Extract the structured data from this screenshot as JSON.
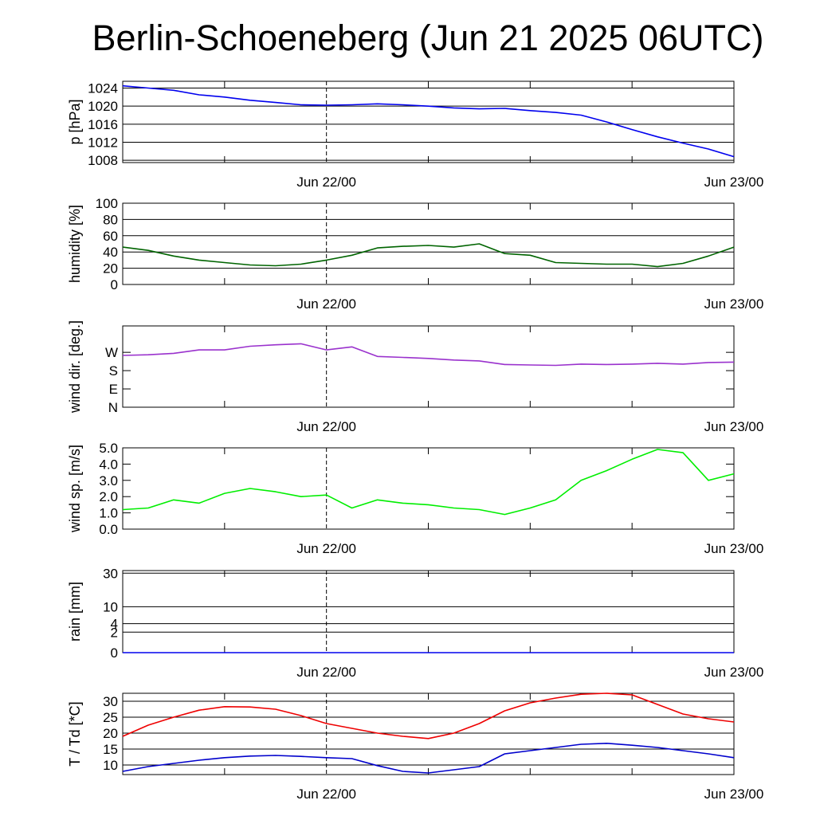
{
  "title": "Berlin-Schoeneberg (Jun 21 2025 06UTC)",
  "x_tick_labels": [
    "Jun 22/00",
    "Jun 23/00"
  ],
  "chart_data": [
    {
      "type": "line",
      "ylabel": "p [hPa]",
      "ylim": [
        1007.5,
        1025.5
      ],
      "yticks": [
        1008,
        1012,
        1016,
        1020,
        1024
      ],
      "ytick_labels": [
        "1008",
        "1012",
        "1016",
        "1020",
        "1024"
      ],
      "grid": true,
      "x_hours": [
        0,
        3,
        6,
        9,
        12,
        15,
        18,
        21,
        24,
        27,
        30,
        33,
        36,
        39,
        42,
        45,
        48,
        51,
        54,
        57,
        60,
        63,
        66,
        69,
        72
      ],
      "series": [
        {
          "color": "#0000ee",
          "values": [
            1024.5,
            1024.0,
            1023.5,
            1022.5,
            1022.0,
            1021.3,
            1020.8,
            1020.3,
            1020.2,
            1020.3,
            1020.5,
            1020.3,
            1020.0,
            1019.6,
            1019.4,
            1019.5,
            1019.0,
            1018.6,
            1018.0,
            1016.5,
            1014.8,
            1013.2,
            1011.8,
            1010.5,
            1008.8
          ]
        }
      ]
    },
    {
      "type": "line",
      "ylabel": "humidity [%]",
      "ylim": [
        0,
        100
      ],
      "yticks": [
        0,
        20,
        40,
        60,
        80,
        100
      ],
      "ytick_labels": [
        "0",
        "20",
        "40",
        "60",
        "80",
        "100"
      ],
      "grid": true,
      "x_hours": [
        0,
        3,
        6,
        9,
        12,
        15,
        18,
        21,
        24,
        27,
        30,
        33,
        36,
        39,
        42,
        45,
        48,
        51,
        54,
        57,
        60,
        63,
        66,
        69,
        72
      ],
      "series": [
        {
          "color": "#006400",
          "values": [
            46,
            42,
            35,
            30,
            27,
            24,
            23,
            25,
            30,
            36,
            45,
            47,
            48,
            46,
            50,
            38,
            36,
            27,
            26,
            25,
            25,
            22,
            26,
            35,
            46
          ]
        }
      ]
    },
    {
      "type": "line",
      "ylabel": "wind dir. [deg.]",
      "ylim": [
        0,
        400
      ],
      "yticks": [
        0,
        90,
        180,
        270
      ],
      "ytick_labels": [
        "N",
        "E",
        "S",
        "W"
      ],
      "grid": false,
      "x_hours": [
        0,
        3,
        6,
        9,
        12,
        15,
        18,
        21,
        24,
        27,
        30,
        33,
        36,
        39,
        42,
        45,
        48,
        51,
        54,
        57,
        60,
        63,
        66,
        69,
        72
      ],
      "series": [
        {
          "color": "#9a32cd",
          "values": [
            255,
            258,
            265,
            282,
            282,
            300,
            307,
            312,
            282,
            297,
            250,
            245,
            240,
            232,
            228,
            210,
            208,
            206,
            212,
            210,
            212,
            216,
            212,
            220,
            222
          ]
        }
      ]
    },
    {
      "type": "line",
      "ylabel": "wind sp. [m/s]",
      "ylim": [
        0,
        5.0
      ],
      "yticks": [
        0,
        1,
        2,
        3,
        4,
        5
      ],
      "ytick_labels": [
        "0.0",
        "1.0",
        "2.0",
        "3.0",
        "4.0",
        "5.0"
      ],
      "grid": false,
      "x_hours": [
        0,
        3,
        6,
        9,
        12,
        15,
        18,
        21,
        24,
        27,
        30,
        33,
        36,
        39,
        42,
        45,
        48,
        51,
        54,
        57,
        60,
        63,
        66,
        69,
        72
      ],
      "series": [
        {
          "color": "#00ee00",
          "values": [
            1.2,
            1.3,
            1.8,
            1.6,
            2.2,
            2.5,
            2.3,
            2.0,
            2.1,
            1.3,
            1.8,
            1.6,
            1.5,
            1.3,
            1.2,
            0.9,
            1.3,
            1.8,
            3.0,
            3.6,
            4.3,
            4.9,
            4.7,
            3.0,
            3.4
          ]
        }
      ]
    },
    {
      "type": "line",
      "ylabel": "rain [mm]",
      "ylim": [
        0,
        32
      ],
      "yticks": [
        0,
        2,
        4,
        10,
        30
      ],
      "ytick_labels": [
        "0",
        "2",
        "4",
        "10",
        "30"
      ],
      "grid": true,
      "x_hours": [
        0,
        72
      ],
      "series": [
        {
          "color": "#0000ee",
          "values": [
            0,
            0
          ]
        }
      ]
    },
    {
      "type": "line",
      "ylabel": "T / Td [*C]",
      "ylim": [
        7,
        32.5
      ],
      "yticks": [
        10,
        15,
        20,
        25,
        30
      ],
      "ytick_labels": [
        "10",
        "15",
        "20",
        "25",
        "30"
      ],
      "grid": true,
      "x_hours": [
        0,
        3,
        6,
        9,
        12,
        15,
        18,
        21,
        24,
        27,
        30,
        33,
        36,
        39,
        42,
        45,
        48,
        51,
        54,
        57,
        60,
        63,
        66,
        69,
        72
      ],
      "series": [
        {
          "color": "#ee0000",
          "values": [
            19,
            22.5,
            25,
            27.2,
            28.3,
            28.2,
            27.5,
            25.5,
            23,
            21.5,
            20,
            19,
            18.3,
            20,
            23,
            27,
            29.5,
            31,
            32.2,
            32.5,
            32,
            29,
            26,
            24.5,
            23.5
          ]
        },
        {
          "color": "#0000cc",
          "values": [
            8,
            9.5,
            10.5,
            11.5,
            12.3,
            12.8,
            13.0,
            12.7,
            12.3,
            12.0,
            9.8,
            8.0,
            7.5,
            8.5,
            9.5,
            13.5,
            14.5,
            15.5,
            16.5,
            16.8,
            16.2,
            15.5,
            14.5,
            13.5,
            12.3
          ]
        }
      ]
    }
  ]
}
